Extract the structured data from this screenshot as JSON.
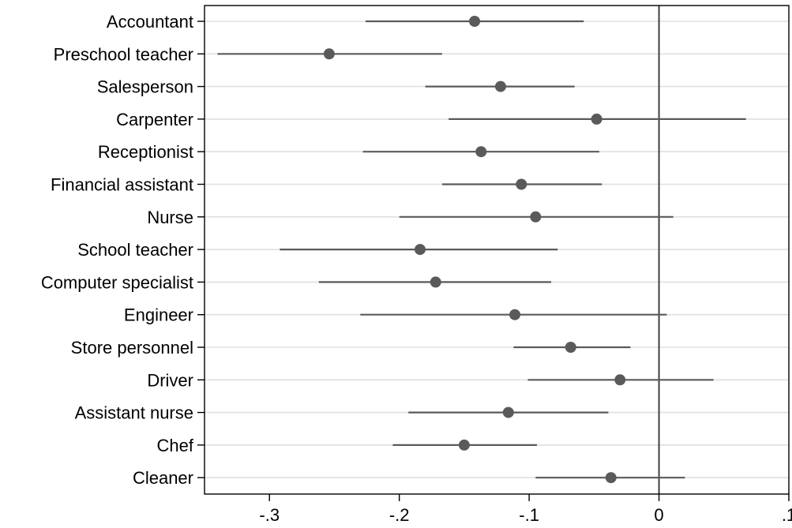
{
  "chart_data": {
    "type": "scatter",
    "title": "",
    "xlabel": "",
    "ylabel": "",
    "xlim": [
      -0.35,
      0.1
    ],
    "grid": true,
    "legend": "none",
    "xticks": [
      {
        "value": -0.3,
        "label": "-.3"
      },
      {
        "value": -0.2,
        "label": "-.2"
      },
      {
        "value": -0.1,
        "label": "-.1"
      },
      {
        "value": 0,
        "label": "0"
      },
      {
        "value": 0.1,
        "label": ".1"
      }
    ],
    "reference_line": 0,
    "categories": [
      "Accountant",
      "Preschool teacher",
      "Salesperson",
      "Carpenter",
      "Receptionist",
      "Financial assistant",
      "Nurse",
      "School teacher",
      "Computer specialist",
      "Engineer",
      "Store personnel",
      "Driver",
      "Assistant nurse",
      "Chef",
      "Cleaner"
    ],
    "estimates": [
      -0.142,
      -0.254,
      -0.122,
      -0.048,
      -0.137,
      -0.106,
      -0.095,
      -0.184,
      -0.172,
      -0.111,
      -0.068,
      -0.03,
      -0.116,
      -0.15,
      -0.037
    ],
    "ci_low": [
      -0.226,
      -0.34,
      -0.18,
      -0.162,
      -0.228,
      -0.167,
      -0.2,
      -0.292,
      -0.262,
      -0.23,
      -0.112,
      -0.101,
      -0.193,
      -0.205,
      -0.095
    ],
    "ci_high": [
      -0.058,
      -0.167,
      -0.065,
      0.067,
      -0.046,
      -0.044,
      0.011,
      -0.078,
      -0.083,
      0.006,
      -0.022,
      0.042,
      -0.039,
      -0.094,
      0.02
    ],
    "colors": {
      "marker": "#5a5a5a",
      "ci_line": "#5a5a5a",
      "grid": "#e0e0e0",
      "axis": "#000000",
      "reference": "#404040"
    }
  }
}
